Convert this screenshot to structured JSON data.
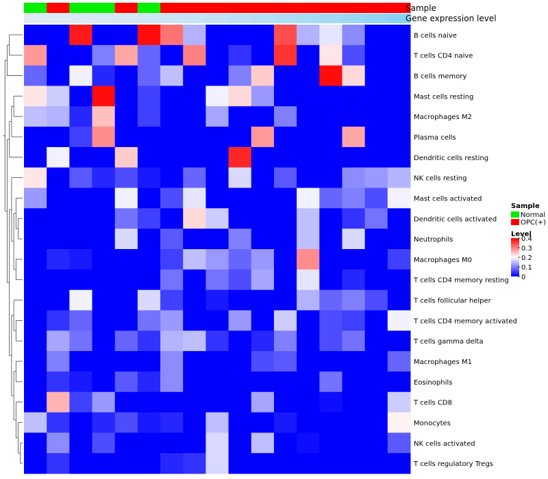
{
  "chart_data": {
    "type": "heatmap",
    "title": "",
    "annotation_labels": {
      "sample": "Sample",
      "gene": "Gene expression level"
    },
    "legend": {
      "sample_title": "Sample",
      "sample_entries": [
        {
          "label": "Normal",
          "color": "#00ee00"
        },
        {
          "label": "OPC(+)",
          "color": "#ff0000"
        }
      ],
      "level_title": "Level",
      "level_ticks": [
        "0.4",
        "0.3",
        "0.2",
        "0.1",
        "0"
      ],
      "level_tick_values": [
        0.4,
        0.3,
        0.2,
        0.1,
        0
      ],
      "position": "right"
    },
    "colors": {
      "low": "#0000ff",
      "mid": "#ffffff",
      "high": "#ff0000",
      "normal": "#00ee00",
      "opc": "#ff0000"
    },
    "value_range": [
      0,
      0.4
    ],
    "columns": 17,
    "sample_groups": [
      "Normal",
      "OPC(+)",
      "Normal",
      "Normal",
      "OPC(+)",
      "Normal",
      "OPC(+)",
      "OPC(+)",
      "OPC(+)",
      "OPC(+)",
      "OPC(+)",
      "OPC(+)",
      "OPC(+)",
      "OPC(+)",
      "OPC(+)",
      "OPC(+)",
      "OPC(+)"
    ],
    "gene_expression_level": [
      0.02,
      0.03,
      0.05,
      0.07,
      0.09,
      0.12,
      0.15,
      0.18,
      0.21,
      0.25,
      0.29,
      0.33,
      0.38,
      0.42,
      0.47,
      0.52,
      0.58
    ],
    "rows": [
      "B cells naive",
      "T cells CD4 naive",
      "B cells memory",
      "Mast cells resting",
      "Macrophages M2",
      "Plasma cells",
      "Dendritic cells resting",
      "NK cells resting",
      "Mast cells activated",
      "Dendritic cells activated",
      "Neutrophils",
      "Macrophages M0",
      "T cells CD4 memory resting",
      "T cells follicular helper",
      "T cells CD4 memory activated",
      "T cells gamma delta",
      "Macrophages M1",
      "Eosinophils",
      "T cells CD8",
      "Monocytes",
      "NK cells activated",
      "T cells regulatory  Tregs"
    ],
    "values": [
      [
        0,
        0,
        0.38,
        0,
        0,
        0.39,
        0.31,
        0.14,
        0,
        0,
        0,
        0.34,
        0.14,
        0.18,
        0.11,
        0,
        0
      ],
      [
        0.28,
        0,
        0,
        0.1,
        0.27,
        0.08,
        0,
        0.3,
        0,
        0.04,
        0,
        0.36,
        0,
        0.22,
        0.06,
        0,
        0
      ],
      [
        0.08,
        0,
        0.19,
        0.03,
        0,
        0.08,
        0.15,
        0,
        0,
        0.1,
        0.24,
        0,
        0,
        0.39,
        0.23,
        0,
        0
      ],
      [
        0.22,
        0.16,
        0,
        0.39,
        0,
        0.05,
        0,
        0,
        0.19,
        0.23,
        0.12,
        0,
        0,
        0,
        0,
        0,
        0
      ],
      [
        0.15,
        0.14,
        0.03,
        0.25,
        0,
        0.05,
        0,
        0,
        0.13,
        0,
        0,
        0.1,
        0,
        0,
        0,
        0,
        0
      ],
      [
        0,
        0,
        0.05,
        0.29,
        0,
        0,
        0,
        0,
        0,
        0,
        0.28,
        0,
        0,
        0,
        0.27,
        0,
        0
      ],
      [
        0,
        0.19,
        0,
        0,
        0.24,
        0,
        0,
        0,
        0,
        0.37,
        0,
        0,
        0,
        0,
        0,
        0,
        0
      ],
      [
        0.22,
        0,
        0.07,
        0.03,
        0.06,
        0.02,
        0,
        0.08,
        0,
        0.17,
        0,
        0.07,
        0,
        0,
        0.11,
        0.12,
        0.14
      ],
      [
        0.12,
        0,
        0,
        0,
        0.19,
        0,
        0.06,
        0.18,
        0,
        0,
        0,
        0,
        0.19,
        0.08,
        0.1,
        0.06,
        0.19
      ],
      [
        0,
        0,
        0,
        0,
        0.09,
        0.05,
        0,
        0.23,
        0.16,
        0,
        0,
        0,
        0.15,
        0,
        0.04,
        0.09,
        0
      ],
      [
        0,
        0,
        0,
        0,
        0.17,
        0,
        0.07,
        0,
        0,
        0.1,
        0,
        0,
        0.15,
        0,
        0.17,
        0,
        0
      ],
      [
        0,
        0.03,
        0.02,
        0,
        0,
        0,
        0.05,
        0.15,
        0.12,
        0.08,
        0.12,
        0,
        0.29,
        0,
        0,
        0,
        0.05
      ],
      [
        0,
        0,
        0,
        0,
        0,
        0,
        0.09,
        0,
        0.09,
        0.06,
        0.13,
        0,
        0.18,
        0,
        0.03,
        0,
        0
      ],
      [
        0,
        0,
        0.19,
        0,
        0,
        0.17,
        0.05,
        0,
        0.02,
        0,
        0,
        0,
        0.14,
        0.08,
        0.1,
        0.06,
        0
      ],
      [
        0,
        0.04,
        0.08,
        0,
        0,
        0.09,
        0.12,
        0,
        0,
        0.12,
        0,
        0.16,
        0,
        0.06,
        0.05,
        0,
        0.19
      ],
      [
        0,
        0.13,
        0.09,
        0,
        0.08,
        0.04,
        0.14,
        0.15,
        0.04,
        0,
        0.03,
        0.1,
        0,
        0.06,
        0.09,
        0,
        0
      ],
      [
        0,
        0.1,
        0,
        0,
        0,
        0,
        0.11,
        0,
        0,
        0,
        0.06,
        0.07,
        0,
        0,
        0,
        0,
        0.08
      ],
      [
        0,
        0.04,
        0.02,
        0,
        0.07,
        0.03,
        0.11,
        0,
        0,
        0,
        0,
        0,
        0,
        0.09,
        0,
        0,
        0
      ],
      [
        0,
        0.26,
        0.05,
        0.12,
        0,
        0,
        0,
        0,
        0,
        0,
        0.13,
        0,
        0,
        0.01,
        0,
        0,
        0.16
      ],
      [
        0.15,
        0.04,
        0,
        0.03,
        0.06,
        0.02,
        0.03,
        0,
        0.15,
        0,
        0,
        0.02,
        0,
        0,
        0,
        0,
        0.21
      ],
      [
        0,
        0.11,
        0,
        0.06,
        0,
        0,
        0,
        0,
        0.17,
        0,
        0.15,
        0,
        0.01,
        0,
        0,
        0,
        0.07
      ],
      [
        0,
        0.04,
        0,
        0,
        0,
        0,
        0.03,
        0.04,
        0.17,
        0,
        0,
        0,
        0,
        0,
        0,
        0,
        0
      ]
    ]
  }
}
